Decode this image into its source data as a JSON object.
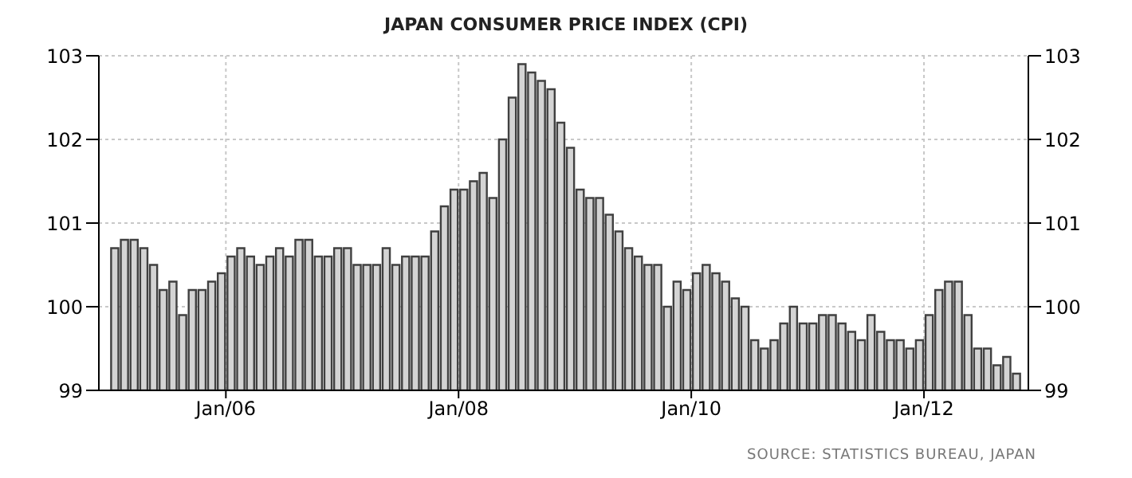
{
  "chart_data": {
    "type": "bar",
    "title": "JAPAN CONSUMER PRICE INDEX (CPI)",
    "x": [
      "2005-01-16",
      "2005-02-16",
      "2005-03-16",
      "2005-04-16",
      "2005-05-16",
      "2005-06-16",
      "2005-07-16",
      "2005-08-16",
      "2005-09-16",
      "2005-10-16",
      "2005-11-16",
      "2005-12-16",
      "2006-01-16",
      "2006-02-16",
      "2006-03-16",
      "2006-04-16",
      "2006-05-16",
      "2006-06-16",
      "2006-07-16",
      "2006-08-16",
      "2006-09-16",
      "2006-10-16",
      "2006-11-16",
      "2006-12-16",
      "2007-01-16",
      "2007-02-16",
      "2007-03-16",
      "2007-04-16",
      "2007-05-16",
      "2007-06-16",
      "2007-07-16",
      "2007-08-16",
      "2007-09-16",
      "2007-10-16",
      "2007-11-16",
      "2007-12-16",
      "2008-01-16",
      "2008-02-16",
      "2008-03-16",
      "2008-04-16",
      "2008-05-16",
      "2008-06-16",
      "2008-07-16",
      "2008-08-16",
      "2008-09-16",
      "2008-10-16",
      "2008-11-16",
      "2008-12-16",
      "2009-01-16",
      "2009-02-16",
      "2009-03-16",
      "2009-04-16",
      "2009-05-16",
      "2009-06-16",
      "2009-07-16",
      "2009-08-16",
      "2009-09-16",
      "2009-10-16",
      "2009-11-16",
      "2009-12-16",
      "2010-01-16",
      "2010-02-16",
      "2010-03-16",
      "2010-04-16",
      "2010-05-16",
      "2010-06-16",
      "2010-07-16",
      "2010-08-16",
      "2010-09-16",
      "2010-10-16",
      "2010-11-16",
      "2010-12-16",
      "2011-01-16",
      "2011-02-16",
      "2011-03-16",
      "2011-04-16",
      "2011-05-16",
      "2011-06-16",
      "2011-07-16",
      "2011-08-16",
      "2011-09-16",
      "2011-10-16",
      "2011-11-16",
      "2011-12-16",
      "2012-01-16",
      "2012-02-16",
      "2012-03-16",
      "2012-04-16",
      "2012-05-16",
      "2012-06-16",
      "2012-07-16",
      "2012-08-16",
      "2012-09-16",
      "2012-10-16"
    ],
    "series": [
      {
        "color": "#d4d4d4",
        "values": [
          100.7,
          100.8,
          100.8,
          100.7,
          100.5,
          100.2,
          100.3,
          99.9,
          100.2,
          100.2,
          100.3,
          100.4,
          100.6,
          100.7,
          100.6,
          100.5,
          100.6,
          100.7,
          100.6,
          100.8,
          100.8,
          100.6,
          100.6,
          100.7,
          100.7,
          100.5,
          100.5,
          100.5,
          100.7,
          100.5,
          100.6,
          100.6,
          100.6,
          100.9,
          101.2,
          101.4,
          101.4,
          101.5,
          101.6,
          101.3,
          102.0,
          102.5,
          102.9,
          102.8,
          102.7,
          102.6,
          102.2,
          101.9,
          101.4,
          101.3,
          101.3,
          101.1,
          100.9,
          100.7,
          100.6,
          100.5,
          100.5,
          100.0,
          100.3,
          100.2,
          100.4,
          100.5,
          100.4,
          100.3,
          100.1,
          100.0,
          99.6,
          99.5,
          99.6,
          99.8,
          100.0,
          99.8,
          99.8,
          99.9,
          99.9,
          99.8,
          99.7,
          99.6,
          99.9,
          99.7,
          99.6,
          99.6,
          99.5,
          99.6,
          99.9,
          100.2,
          100.3,
          100.3,
          99.9,
          99.5,
          99.5,
          99.3,
          99.4,
          99.2
        ]
      }
    ],
    "xlim": [
      "2004-11-28",
      "2012-11-24"
    ],
    "xticks": [
      {
        "value": "2006-01",
        "label": "Jan/06"
      },
      {
        "value": "2008-01",
        "label": "Jan/08"
      },
      {
        "value": "2010-01",
        "label": "Jan/10"
      },
      {
        "value": "2012-01",
        "label": "Jan/12"
      }
    ],
    "ylim": [
      99,
      103
    ],
    "yticks": [
      99,
      100,
      101,
      102,
      103
    ],
    "y2lim": [
      99,
      103
    ],
    "y2ticks": [
      99,
      100,
      101,
      102,
      103
    ],
    "grid": true,
    "annotations": [
      "SOURCE: STATISTICS BUREAU, JAPAN"
    ]
  }
}
